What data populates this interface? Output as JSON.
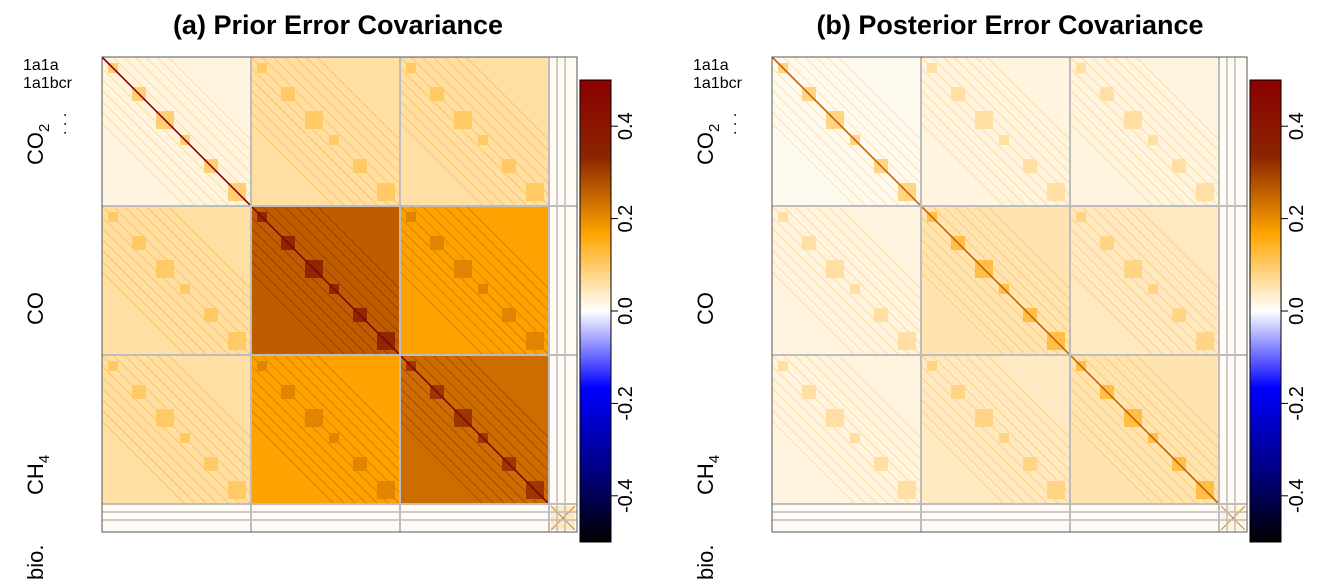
{
  "chart_data": [
    {
      "type": "heatmap",
      "title": "(a) Prior Error Covariance",
      "row_groups": [
        "CO2",
        "CO",
        "CH4",
        "bio."
      ],
      "top_row_labels": [
        "1a1a",
        "1a1bcr"
      ],
      "colorbar": {
        "ticks": [
          0.4,
          0.2,
          0.0,
          -0.2,
          -0.4
        ],
        "tick_labels": [
          "0.4",
          "0.2",
          "0.0",
          "-0.2",
          "-0.4"
        ],
        "range": [
          -0.5,
          0.5
        ],
        "colors": [
          "#000000",
          "#00008b",
          "#0000ff",
          "#ffffff",
          "#ffa500",
          "#8b2500",
          "#8b0000"
        ]
      },
      "block_values": [
        [
          0.02,
          0.06,
          0.06
        ],
        [
          0.06,
          0.26,
          0.17
        ],
        [
          0.06,
          0.17,
          0.24
        ]
      ],
      "diagonal_peak": 0.5,
      "legend": "right"
    },
    {
      "type": "heatmap",
      "title": "(b) Posterior Error Covariance",
      "row_groups": [
        "CO2",
        "CO",
        "CH4",
        "bio."
      ],
      "top_row_labels": [
        "1a1a",
        "1a1bcr"
      ],
      "colorbar": {
        "ticks": [
          0.4,
          0.2,
          0.0,
          -0.2,
          -0.4
        ],
        "tick_labels": [
          "0.4",
          "0.2",
          "0.0",
          "-0.2",
          "-0.4"
        ],
        "range": [
          -0.5,
          0.5
        ],
        "colors": [
          "#000000",
          "#00008b",
          "#0000ff",
          "#ffffff",
          "#ffa500",
          "#8b2500",
          "#8b0000"
        ]
      },
      "block_values": [
        [
          0.01,
          0.02,
          0.02
        ],
        [
          0.02,
          0.05,
          0.04
        ],
        [
          0.02,
          0.04,
          0.05
        ]
      ],
      "diagonal_peak": 0.25,
      "legend": "right"
    }
  ],
  "labels": {
    "co2_main": "CO",
    "co2_sub": "2",
    "co": "CO",
    "ch4_main": "CH",
    "ch4_sub": "4",
    "bio": "bio.",
    "row1": "1a1a",
    "row2": "1a1bcr",
    "dots": ". . ."
  }
}
